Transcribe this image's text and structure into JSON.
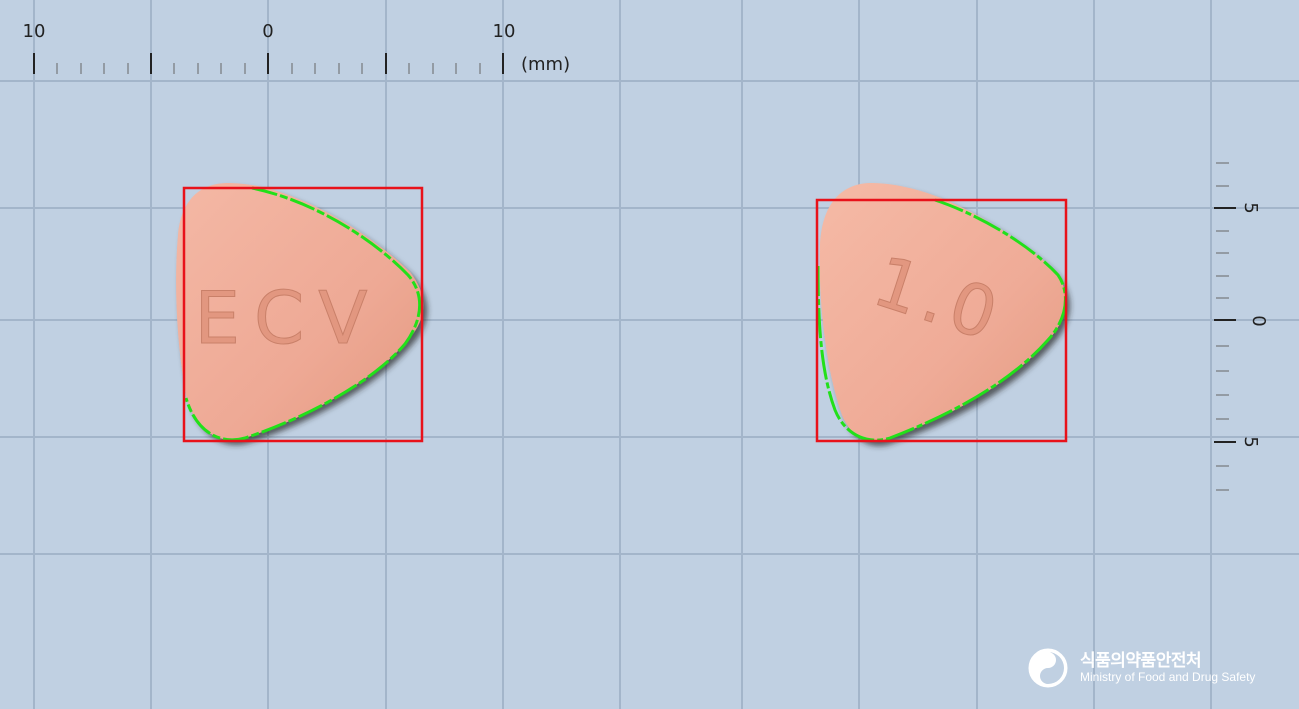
{
  "top_ruler": {
    "labels": [
      "10",
      "0",
      "10"
    ],
    "unit": "(mm)"
  },
  "right_ruler": {
    "labels": [
      "5",
      "0",
      "5"
    ]
  },
  "pills": [
    {
      "imprint": "ECV",
      "color": "#eeaa96"
    },
    {
      "imprint": "1.0",
      "color": "#efaa96"
    }
  ],
  "colors": {
    "background": "#c0d0e2",
    "grid": "#9fb1c6",
    "bounding_box": "#e8121a",
    "contour": "#22e01a",
    "pill": "#eeaa96"
  },
  "logo": {
    "icon": "mfds-emblem-icon",
    "korean": "식품의약품안전처",
    "english": "Ministry of Food and Drug Safety"
  }
}
